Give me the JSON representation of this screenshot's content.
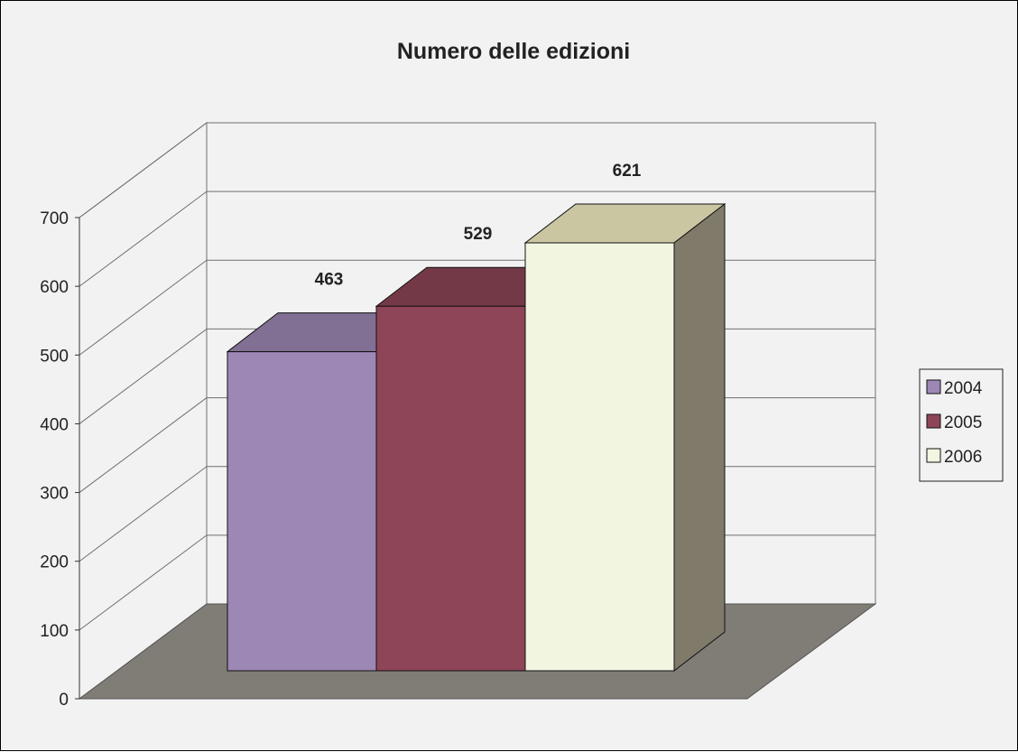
{
  "chart_data": {
    "type": "bar",
    "title": "Numero delle edizioni",
    "xlabel": "",
    "ylabel": "",
    "ylim": [
      0,
      700
    ],
    "yticks": [
      0,
      100,
      200,
      300,
      400,
      500,
      600,
      700
    ],
    "grid": true,
    "legend": "right",
    "three_d": true,
    "categories": [
      ""
    ],
    "series": [
      {
        "name": "2004",
        "values": [
          463
        ],
        "color": "#9d88b5"
      },
      {
        "name": "2005",
        "values": [
          529
        ],
        "color": "#8e4557"
      },
      {
        "name": "2006",
        "values": [
          621
        ],
        "color": "#f2f5e0"
      }
    ]
  }
}
